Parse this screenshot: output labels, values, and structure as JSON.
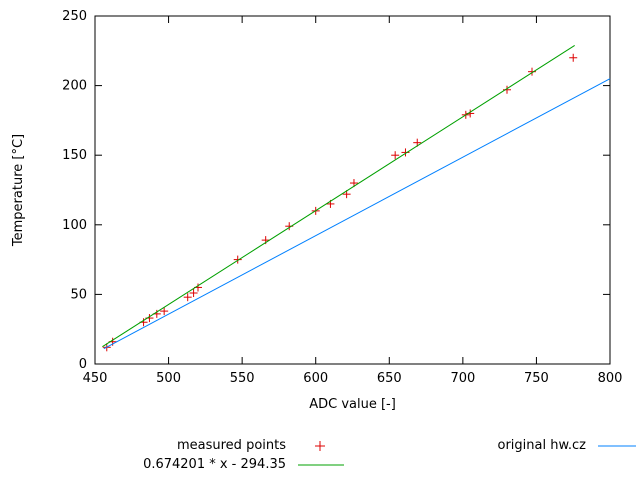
{
  "chart_data": {
    "type": "scatter",
    "title": "",
    "xlabel": "ADC value [-]",
    "ylabel": "Temperature [°C]",
    "xlim": [
      450,
      800
    ],
    "ylim": [
      0,
      250
    ],
    "xticks": [
      450,
      500,
      550,
      600,
      650,
      700,
      750,
      800
    ],
    "yticks": [
      0,
      50,
      100,
      150,
      200,
      250
    ],
    "grid": false,
    "legend_position": "below-plot",
    "axis_color": "#000000",
    "series": [
      {
        "name": "measured points",
        "type": "scatter",
        "marker": "+",
        "color": "#dd0000",
        "points": [
          [
            458,
            12
          ],
          [
            462,
            16
          ],
          [
            483,
            30
          ],
          [
            487,
            33
          ],
          [
            492,
            36
          ],
          [
            497,
            38
          ],
          [
            513,
            48
          ],
          [
            517,
            51
          ],
          [
            520,
            55
          ],
          [
            547,
            75
          ],
          [
            566,
            89
          ],
          [
            582,
            99
          ],
          [
            600,
            110
          ],
          [
            610,
            115
          ],
          [
            621,
            122
          ],
          [
            626,
            130
          ],
          [
            654,
            150
          ],
          [
            661,
            152
          ],
          [
            669,
            159
          ],
          [
            702,
            179
          ],
          [
            705,
            180
          ],
          [
            730,
            197
          ],
          [
            747,
            210
          ],
          [
            775,
            220
          ]
        ]
      },
      {
        "name": "0.674201 * x - 294.35",
        "type": "line",
        "color": "#00a000",
        "slope": 0.674201,
        "intercept": -294.35,
        "x_range": [
          455,
          776
        ]
      },
      {
        "name": "original hw.cz",
        "type": "line",
        "color": "#0080ff",
        "points": [
          [
            456,
            11
          ],
          [
            800,
            205
          ]
        ]
      }
    ]
  }
}
